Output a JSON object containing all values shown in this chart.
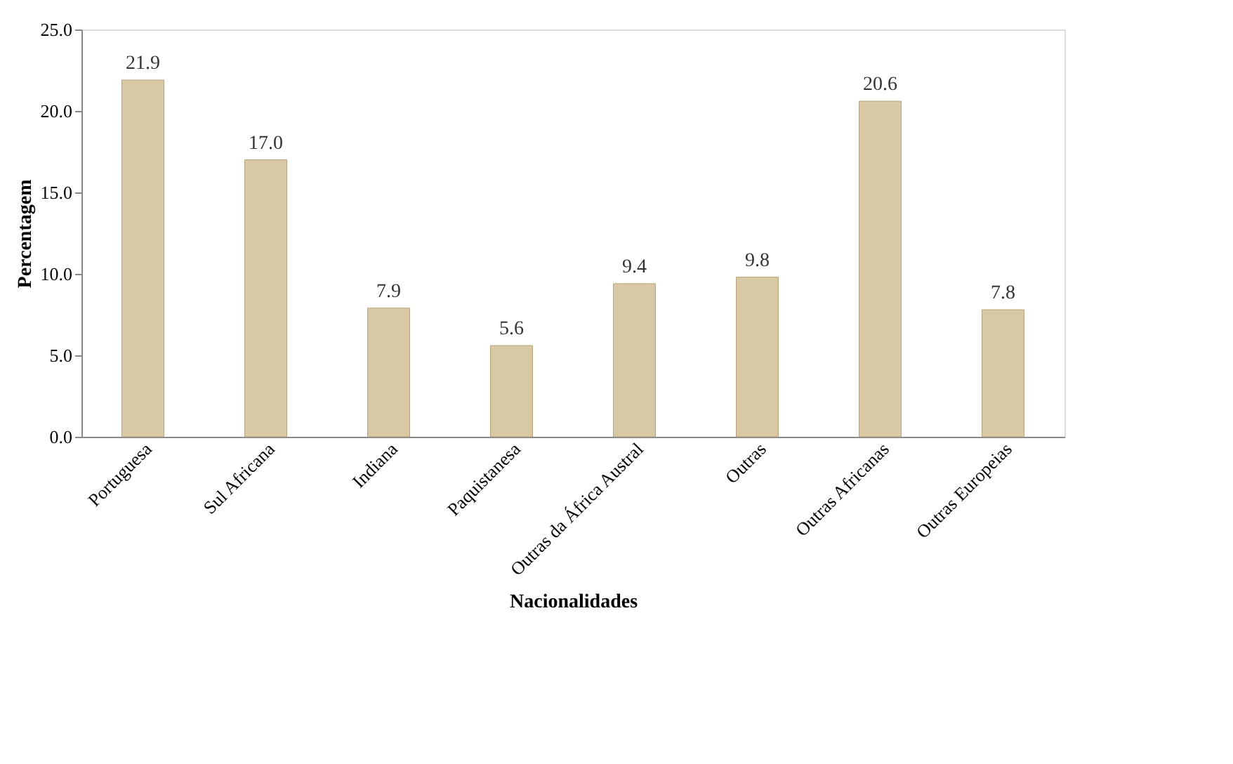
{
  "chart_data": {
    "type": "bar",
    "xlabel": "Nacionalidades",
    "ylabel": "Percentagem",
    "categories": [
      "Portuguesa",
      "Sul Africana",
      "Indiana",
      "Paquistanesa",
      "Outras da África Austral",
      "Outras",
      "Outras Africanas",
      "Outras Europeias"
    ],
    "values": [
      21.9,
      17.0,
      7.9,
      5.6,
      9.4,
      9.8,
      20.6,
      7.8
    ],
    "color": "#d8c8a4",
    "ylim": [
      0,
      25
    ],
    "yticks": [
      {
        "value": 0,
        "label": "0.0"
      },
      {
        "value": 5,
        "label": "5.0"
      },
      {
        "value": 10,
        "label": "10.0"
      },
      {
        "value": 15,
        "label": "15.0"
      },
      {
        "value": 20,
        "label": "20.0"
      },
      {
        "value": 25,
        "label": "25.0"
      }
    ],
    "value_labels": [
      "21.9",
      "17.0",
      "7.9",
      "5.6",
      "9.4",
      "9.8",
      "20.6",
      "7.8"
    ],
    "grid": false
  }
}
